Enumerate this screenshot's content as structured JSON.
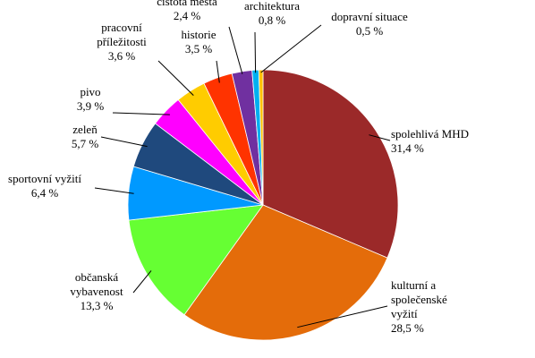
{
  "chart_data": {
    "type": "pie",
    "start_angle_deg": 0,
    "direction": "clockwise",
    "legend": "none",
    "slices": [
      {
        "label": "spolehlivá MHD",
        "label_lines": [
          "spolehlivá MHD"
        ],
        "value_text": "31,4 %",
        "value": 31.4,
        "color": "#9B2929"
      },
      {
        "label": "kulturní a společenské vyžití",
        "label_lines": [
          "kulturní a",
          "společenské",
          "vyžití"
        ],
        "value_text": "28,5 %",
        "value": 28.5,
        "color": "#E46C0A"
      },
      {
        "label": "občanská vybavenost",
        "label_lines": [
          "občanská",
          "vybavenost"
        ],
        "value_text": "13,3 %",
        "value": 13.3,
        "color": "#66FF33"
      },
      {
        "label": "sportovní vyžití",
        "label_lines": [
          "sportovní vyžití"
        ],
        "value_text": "6,4 %",
        "value": 6.4,
        "color": "#0099FF"
      },
      {
        "label": "zeleň",
        "label_lines": [
          "zeleň"
        ],
        "value_text": "5,7 %",
        "value": 5.7,
        "color": "#1F497D"
      },
      {
        "label": "pivo",
        "label_lines": [
          "pivo"
        ],
        "value_text": "3,9 %",
        "value": 3.9,
        "color": "#FF00FF"
      },
      {
        "label": "pracovní příležitosti",
        "label_lines": [
          "pracovní",
          "příležitosti"
        ],
        "value_text": "3,6 %",
        "value": 3.6,
        "color": "#FFCC00"
      },
      {
        "label": "historie",
        "label_lines": [
          "historie"
        ],
        "value_text": "3,5 %",
        "value": 3.5,
        "color": "#FF3300"
      },
      {
        "label": "čistota města",
        "label_lines": [
          "čistota města"
        ],
        "value_text": "2,4 %",
        "value": 2.4,
        "color": "#7030A0"
      },
      {
        "label": "architektura",
        "label_lines": [
          "architektura"
        ],
        "value_text": "0,8 %",
        "value": 0.8,
        "color": "#00B0F0"
      },
      {
        "label": "dopravní situace",
        "label_lines": [
          "dopravní situace"
        ],
        "value_text": "0,5 %",
        "value": 0.5,
        "color": "#FFC000"
      }
    ]
  }
}
